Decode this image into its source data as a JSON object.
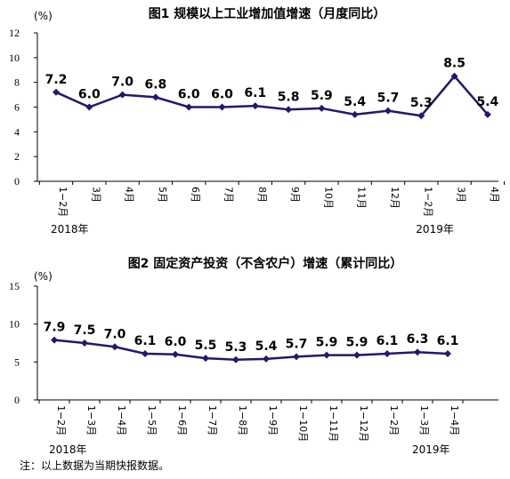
{
  "note": "注：以上数据为当期快报数据。",
  "chart_data": [
    {
      "type": "line",
      "title": "图1   规模以上工业增加值增速（月度同比）",
      "unit": "(%)",
      "ylim": [
        0,
        12
      ],
      "yticks": [
        0,
        2,
        4,
        6,
        8,
        10,
        12
      ],
      "categories": [
        "1−2月",
        "3月",
        "4月",
        "5月",
        "6月",
        "7月",
        "8月",
        "9月",
        "10月",
        "11月",
        "12月",
        "1−2月",
        "3月",
        "4月"
      ],
      "year_labels": [
        {
          "index": 0,
          "label": "2018年"
        },
        {
          "index": 11,
          "label": "2019年"
        }
      ],
      "series": [
        {
          "values": [
            7.2,
            6.0,
            7.0,
            6.8,
            6.0,
            6.0,
            6.1,
            5.8,
            5.9,
            5.4,
            5.7,
            5.3,
            8.5,
            5.4
          ],
          "labels": [
            "7.2",
            "6.0",
            "7.0",
            "6.8",
            "6.0",
            "6.0",
            "6.1",
            "5.8",
            "5.9",
            "5.4",
            "5.7",
            "5.3",
            "8.5",
            "5.4"
          ]
        }
      ],
      "grid": false,
      "line_color": "#1f1a6e"
    },
    {
      "type": "line",
      "title": "图2   固定资产投资（不含农户）增速（累计同比）",
      "unit": "(%)",
      "ylim": [
        0,
        15
      ],
      "yticks": [
        0,
        5,
        10,
        15
      ],
      "categories": [
        "1−2月",
        "1−3月",
        "1−4月",
        "1−5月",
        "1−6月",
        "1−7月",
        "1−8月",
        "1−9月",
        "1−10月",
        "1−11月",
        "1−12月",
        "1−2月",
        "1−3月",
        "1−4月"
      ],
      "year_labels": [
        {
          "index": 0,
          "label": "2018年"
        },
        {
          "index": 12,
          "label": "2019年"
        }
      ],
      "series": [
        {
          "values": [
            7.9,
            7.5,
            7.0,
            6.1,
            6.0,
            5.5,
            5.3,
            5.4,
            5.7,
            5.9,
            5.9,
            6.1,
            6.3,
            6.1
          ],
          "labels": [
            "7.9",
            "7.5",
            "7.0",
            "6.1",
            "6.0",
            "5.5",
            "5.3",
            "5.4",
            "5.7",
            "5.9",
            "5.9",
            "6.1",
            "6.3",
            "6.1"
          ]
        }
      ],
      "grid": false,
      "line_color": "#1f1a6e"
    }
  ]
}
